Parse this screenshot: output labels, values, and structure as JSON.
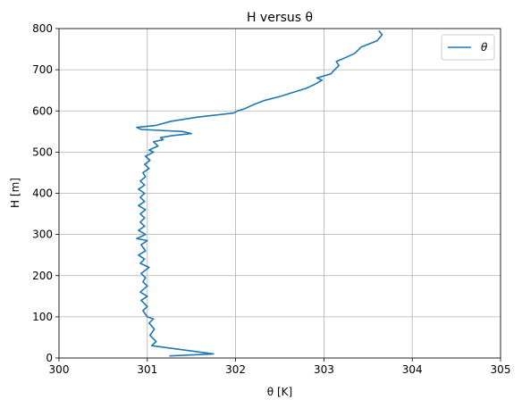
{
  "chart_data": {
    "type": "line",
    "title": "H versus θ",
    "xlabel": "θ [K]",
    "ylabel": "H [m]",
    "xlim": [
      300,
      305
    ],
    "ylim": [
      0,
      800
    ],
    "xticks": [
      "300",
      "301",
      "302",
      "303",
      "304",
      "305"
    ],
    "yticks": [
      "0",
      "100",
      "200",
      "300",
      "400",
      "500",
      "600",
      "700",
      "800"
    ],
    "grid": true,
    "legend_position": "top-right",
    "colors": {
      "series": "#1f77b4"
    },
    "series": [
      {
        "name": "θ",
        "x": [
          301.25,
          301.75,
          301.05,
          301.1,
          301.03,
          301.08,
          301.02,
          301.07,
          301.0,
          300.95,
          301.0,
          300.93,
          301.0,
          300.92,
          301.0,
          300.95,
          300.98,
          300.93,
          301.02,
          300.92,
          300.97,
          300.9,
          300.98,
          300.93,
          301.0,
          300.88,
          300.98,
          300.9,
          300.97,
          300.92,
          300.97,
          300.92,
          300.98,
          300.9,
          300.97,
          300.92,
          300.97,
          300.9,
          300.97,
          300.92,
          300.98,
          300.95,
          301.02,
          300.97,
          301.03,
          300.98,
          301.07,
          301.02,
          301.12,
          301.07,
          301.18,
          301.15,
          301.28,
          301.5,
          301.4,
          300.93,
          300.88,
          301.1,
          301.27,
          301.57,
          301.98,
          302.02,
          302.1,
          302.2,
          302.32,
          302.5,
          302.65,
          302.8,
          302.9,
          302.98,
          302.92,
          303.08,
          303.12,
          303.17,
          303.14,
          303.25,
          303.35,
          303.42,
          303.6,
          303.66,
          303.62
        ],
        "y": [
          5,
          10,
          30,
          40,
          55,
          70,
          85,
          95,
          100,
          115,
          125,
          140,
          150,
          160,
          175,
          185,
          195,
          205,
          220,
          230,
          240,
          250,
          260,
          275,
          285,
          290,
          300,
          310,
          320,
          330,
          340,
          350,
          360,
          370,
          380,
          390,
          400,
          410,
          420,
          430,
          440,
          450,
          460,
          470,
          480,
          490,
          500,
          505,
          515,
          525,
          530,
          535,
          540,
          545,
          550,
          555,
          560,
          565,
          575,
          585,
          595,
          600,
          605,
          615,
          625,
          635,
          645,
          655,
          665,
          675,
          680,
          690,
          700,
          710,
          720,
          730,
          740,
          755,
          770,
          785,
          795
        ]
      }
    ]
  }
}
